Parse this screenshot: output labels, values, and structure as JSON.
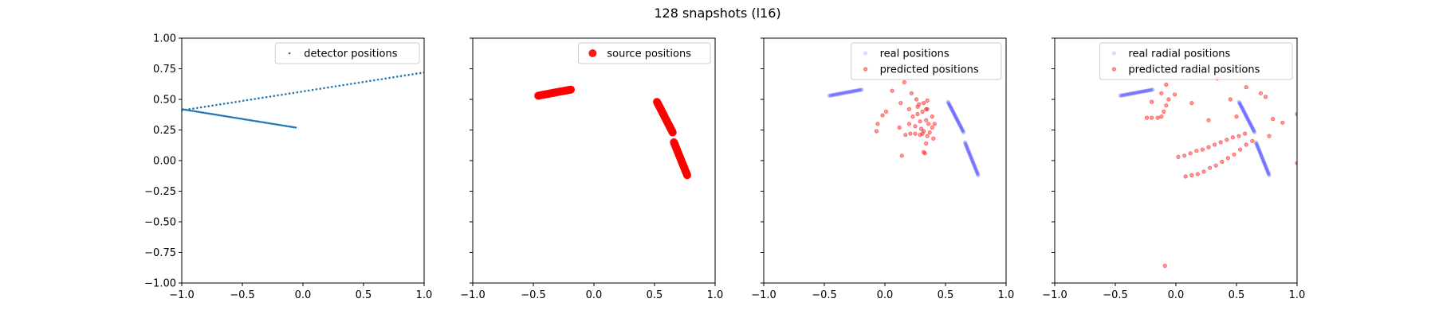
{
  "figure": {
    "title": "128 snapshots (l16)"
  },
  "colors": {
    "detector": "#1f77b4",
    "source": "#ff0000",
    "real": "#0000ff",
    "predicted": "#ff0000"
  },
  "chart_data": [
    {
      "type": "scatter",
      "xlim": [
        -1.0,
        1.0
      ],
      "ylim": [
        -1.0,
        1.0
      ],
      "xticks": [
        "−1.0",
        "−0.5",
        "0.0",
        "0.5",
        "1.0"
      ],
      "yticks": [
        "1.00",
        "0.75",
        "0.50",
        "0.25",
        "0.00",
        "−0.25",
        "−0.50",
        "−0.75",
        "−1.00"
      ],
      "show_ytick_labels": true,
      "grid": false,
      "legend_position": "top-right",
      "series": [
        {
          "name": "detector positions",
          "style": "detector",
          "segments": [
            {
              "from": [
                -1.0,
                0.41
              ],
              "to": [
                1.0,
                0.72
              ],
              "count": 64
            },
            {
              "from": [
                -1.0,
                0.42
              ],
              "to": [
                -0.06,
                0.27
              ],
              "count": 64
            }
          ]
        }
      ]
    },
    {
      "type": "scatter",
      "xlim": [
        -1.0,
        1.0
      ],
      "ylim": [
        -1.0,
        1.0
      ],
      "xticks": [
        "−1.0",
        "−0.5",
        "0.0",
        "0.5",
        "1.0"
      ],
      "yticks": [
        "1.00",
        "0.75",
        "0.50",
        "0.25",
        "0.00",
        "−0.25",
        "−0.50",
        "−0.75",
        "−1.00"
      ],
      "show_ytick_labels": false,
      "grid": false,
      "legend_position": "top-right",
      "series": [
        {
          "name": "source positions",
          "style": "source",
          "segments": [
            {
              "from": [
                -0.46,
                0.53
              ],
              "to": [
                -0.19,
                0.58
              ],
              "count": 40
            },
            {
              "from": [
                0.52,
                0.48
              ],
              "to": [
                0.65,
                0.23
              ],
              "count": 44
            },
            {
              "from": [
                0.66,
                0.15
              ],
              "to": [
                0.77,
                -0.12
              ],
              "count": 44
            }
          ]
        }
      ]
    },
    {
      "type": "scatter",
      "xlim": [
        -1.0,
        1.0
      ],
      "ylim": [
        -1.0,
        1.0
      ],
      "xticks": [
        "−1.0",
        "−0.5",
        "0.0",
        "0.5",
        "1.0"
      ],
      "yticks": [
        "1.00",
        "0.75",
        "0.50",
        "0.25",
        "0.00",
        "−0.25",
        "−0.50",
        "−0.75",
        "−1.00"
      ],
      "show_ytick_labels": false,
      "grid": false,
      "legend_position": "top-right",
      "series": [
        {
          "name": "real positions",
          "style": "real",
          "segments": [
            {
              "from": [
                -0.46,
                0.53
              ],
              "to": [
                -0.19,
                0.58
              ],
              "count": 40
            },
            {
              "from": [
                0.52,
                0.48
              ],
              "to": [
                0.65,
                0.23
              ],
              "count": 44
            },
            {
              "from": [
                0.66,
                0.15
              ],
              "to": [
                0.77,
                -0.12
              ],
              "count": 44
            }
          ]
        },
        {
          "name": "predicted positions",
          "style": "predicted",
          "points": [
            [
              0.06,
              0.57
            ],
            [
              0.16,
              0.64
            ],
            [
              0.22,
              0.55
            ],
            [
              0.26,
              0.5
            ],
            [
              0.32,
              0.47
            ],
            [
              0.35,
              0.49
            ],
            [
              0.13,
              0.47
            ],
            [
              0.27,
              0.44
            ],
            [
              0.34,
              0.42
            ],
            [
              0.23,
              0.36
            ],
            [
              0.27,
              0.38
            ],
            [
              0.31,
              0.4
            ],
            [
              0.35,
              0.42
            ],
            [
              0.29,
              0.32
            ],
            [
              0.34,
              0.33
            ],
            [
              0.41,
              0.3
            ],
            [
              0.2,
              0.3
            ],
            [
              0.25,
              0.28
            ],
            [
              0.3,
              0.26
            ],
            [
              0.36,
              0.3
            ],
            [
              0.39,
              0.27
            ],
            [
              0.17,
              0.21
            ],
            [
              0.21,
              0.22
            ],
            [
              0.25,
              0.22
            ],
            [
              0.29,
              0.21
            ],
            [
              0.32,
              0.24
            ],
            [
              0.35,
              0.2
            ],
            [
              0.31,
              0.22
            ],
            [
              0.37,
              0.23
            ],
            [
              -0.06,
              0.3
            ],
            [
              -0.07,
              0.24
            ],
            [
              -0.02,
              0.37
            ],
            [
              0.01,
              0.4
            ],
            [
              0.14,
              0.04
            ],
            [
              0.32,
              0.07
            ],
            [
              0.33,
              0.06
            ],
            [
              0.12,
              0.27
            ],
            [
              0.39,
              0.36
            ],
            [
              0.28,
              0.46
            ],
            [
              0.2,
              0.42
            ],
            [
              0.34,
              0.14
            ],
            [
              0.4,
              0.18
            ]
          ]
        }
      ]
    },
    {
      "type": "scatter",
      "xlim": [
        -1.0,
        1.0
      ],
      "ylim": [
        -1.0,
        1.0
      ],
      "xticks": [
        "−1.0",
        "−0.5",
        "0.0",
        "0.5",
        "1.0"
      ],
      "yticks": [
        "1.00",
        "0.75",
        "0.50",
        "0.25",
        "0.00",
        "−0.25",
        "−0.50",
        "−0.75",
        "−1.00"
      ],
      "show_ytick_labels": false,
      "grid": false,
      "legend_position": "top-right",
      "series": [
        {
          "name": "real radial positions",
          "style": "real",
          "segments": [
            {
              "from": [
                -0.46,
                0.53
              ],
              "to": [
                -0.19,
                0.58
              ],
              "count": 40
            },
            {
              "from": [
                0.52,
                0.48
              ],
              "to": [
                0.65,
                0.23
              ],
              "count": 44
            },
            {
              "from": [
                0.66,
                0.15
              ],
              "to": [
                0.77,
                -0.12
              ],
              "count": 44
            }
          ]
        },
        {
          "name": "predicted radial positions",
          "style": "predicted",
          "points": [
            [
              0.02,
              0.03
            ],
            [
              0.07,
              0.04
            ],
            [
              0.12,
              0.06
            ],
            [
              0.17,
              0.08
            ],
            [
              0.22,
              0.09
            ],
            [
              0.27,
              0.11
            ],
            [
              0.32,
              0.13
            ],
            [
              0.37,
              0.15
            ],
            [
              0.42,
              0.17
            ],
            [
              0.47,
              0.19
            ],
            [
              0.52,
              0.2
            ],
            [
              0.57,
              0.22
            ],
            [
              0.08,
              -0.13
            ],
            [
              0.13,
              -0.12
            ],
            [
              0.18,
              -0.11
            ],
            [
              0.23,
              -0.09
            ],
            [
              0.28,
              -0.06
            ],
            [
              0.33,
              -0.04
            ],
            [
              0.38,
              -0.01
            ],
            [
              0.43,
              0.02
            ],
            [
              0.48,
              0.05
            ],
            [
              0.53,
              0.09
            ],
            [
              0.58,
              0.13
            ],
            [
              0.63,
              0.16
            ],
            [
              -0.12,
              0.36
            ],
            [
              -0.1,
              0.4
            ],
            [
              -0.08,
              0.45
            ],
            [
              -0.06,
              0.5
            ],
            [
              -0.12,
              0.55
            ],
            [
              -0.2,
              0.48
            ],
            [
              -0.2,
              0.35
            ],
            [
              -0.24,
              0.35
            ],
            [
              -0.15,
              0.35
            ],
            [
              -0.01,
              0.54
            ],
            [
              -0.08,
              0.62
            ],
            [
              0.13,
              0.47
            ],
            [
              0.27,
              0.33
            ],
            [
              0.45,
              0.5
            ],
            [
              0.58,
              0.6
            ],
            [
              0.7,
              0.55
            ],
            [
              0.74,
              0.52
            ],
            [
              0.8,
              0.34
            ],
            [
              0.88,
              0.31
            ],
            [
              0.77,
              0.2
            ],
            [
              1.0,
              0.38
            ],
            [
              1.0,
              -0.02
            ],
            [
              0.34,
              0.67
            ],
            [
              0.5,
              0.36
            ],
            [
              -0.09,
              -0.86
            ]
          ]
        }
      ]
    }
  ]
}
